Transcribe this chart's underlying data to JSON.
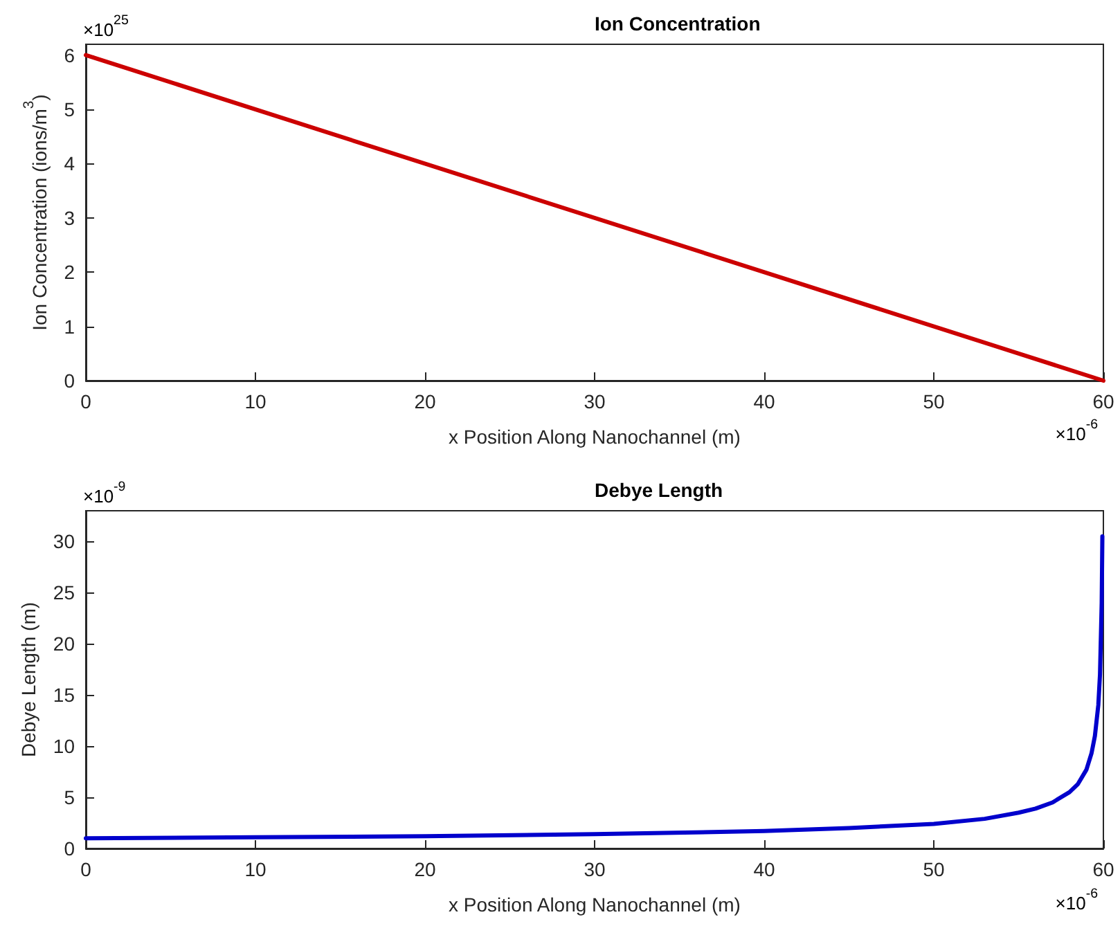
{
  "chart_data": [
    {
      "type": "line",
      "title": "Ion Concentration",
      "xlabel": "x Position Along Nanochannel (m)",
      "ylabel": "Ion Concentration (ions/m$^{3}$)",
      "annotations": [
        "×10$^{25}$",
        "×10$^{-6}$"
      ],
      "x": [
        0,
        60
      ],
      "series": [
        {
          "color": "#cc0000",
          "values": [
            6,
            0
          ]
        }
      ],
      "xlim": [
        0,
        60
      ],
      "xticks": [
        0,
        10,
        20,
        30,
        40,
        50,
        60
      ],
      "ylim": [
        0,
        6.2
      ],
      "yticks": [
        0,
        1,
        2,
        3,
        4,
        5,
        6
      ],
      "grid": false,
      "marker": "none",
      "line_style": "solid"
    },
    {
      "type": "line",
      "title": "Debye Length",
      "xlabel": "x Position Along Nanochannel (m)",
      "ylabel": "Debye Length (m)",
      "annotations": [
        "×10$^{-9}$",
        "×10$^{-6}$"
      ],
      "x": [
        0,
        10,
        20,
        30,
        40,
        45,
        50,
        53,
        55,
        56,
        57,
        58,
        58.5,
        59,
        59.3,
        59.5,
        59.7,
        59.8,
        59.9,
        59.94
      ],
      "series": [
        {
          "color": "#0000cc",
          "values": [
            1,
            1.1,
            1.2,
            1.4,
            1.7,
            2,
            2.4,
            2.9,
            3.5,
            3.9,
            4.5,
            5.5,
            6.3,
            7.7,
            9.3,
            11,
            14,
            17,
            24,
            30.5
          ]
        }
      ],
      "xlim": [
        0,
        60
      ],
      "xticks": [
        0,
        10,
        20,
        30,
        40,
        50,
        60
      ],
      "ylim": [
        0,
        33
      ],
      "yticks": [
        0,
        5,
        10,
        15,
        20,
        25,
        30
      ],
      "grid": false,
      "marker": "none",
      "line_style": "solid"
    }
  ]
}
